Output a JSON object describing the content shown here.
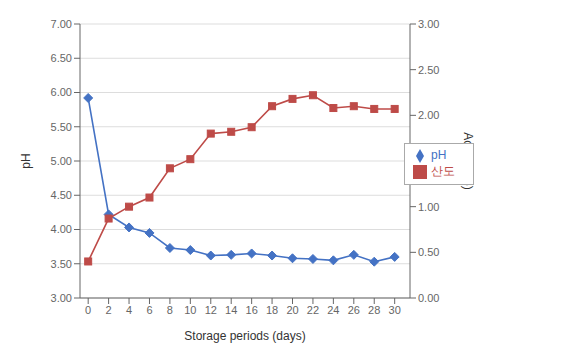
{
  "chart_data": {
    "type": "line",
    "xlabel": "Storage periods (days)",
    "ylabel": "pH",
    "y2label": "Acidity (%)",
    "x": [
      0,
      2,
      4,
      6,
      8,
      10,
      12,
      14,
      16,
      18,
      20,
      22,
      24,
      26,
      28,
      30
    ],
    "series": [
      {
        "name": "pH",
        "color": "#4472C4",
        "marker": "diamond",
        "line_style": "solid",
        "values": [
          5.92,
          4.22,
          4.03,
          3.95,
          3.73,
          3.7,
          3.62,
          3.63,
          3.65,
          3.62,
          3.58,
          3.57,
          3.55,
          3.63,
          3.53,
          3.6
        ]
      },
      {
        "name": "산도",
        "color": "#BE4B48",
        "marker": "square",
        "line_style": "solid",
        "axis": "y2",
        "values": [
          0.4,
          0.87,
          1.0,
          1.1,
          1.42,
          1.52,
          1.8,
          1.82,
          1.87,
          2.1,
          2.18,
          2.22,
          2.08,
          2.1,
          2.07,
          2.07
        ]
      }
    ],
    "xlim": [
      -0.8,
      31.5
    ],
    "xticks": [
      0,
      2,
      4,
      6,
      8,
      10,
      12,
      14,
      16,
      18,
      20,
      22,
      24,
      26,
      28,
      30
    ],
    "ylim": [
      3.0,
      7.0
    ],
    "yticks": [
      {
        "value": 3.0,
        "label": "3.00"
      },
      {
        "value": 3.5,
        "label": "3.50"
      },
      {
        "value": 4.0,
        "label": "4.00"
      },
      {
        "value": 4.5,
        "label": "4.50"
      },
      {
        "value": 5.0,
        "label": "5.00"
      },
      {
        "value": 5.5,
        "label": "5.50"
      },
      {
        "value": 6.0,
        "label": "6.00"
      },
      {
        "value": 6.5,
        "label": "6.50"
      },
      {
        "value": 7.0,
        "label": "7.00"
      }
    ],
    "y2lim": [
      0.0,
      3.0
    ],
    "y2ticks": [
      {
        "value": 0.0,
        "label": "0.00"
      },
      {
        "value": 0.5,
        "label": "0.50"
      },
      {
        "value": 1.0,
        "label": "1.00"
      },
      {
        "value": 1.5,
        "label": "1.50"
      },
      {
        "value": 2.0,
        "label": "2.00"
      },
      {
        "value": 2.5,
        "label": "2.50"
      },
      {
        "value": 3.0,
        "label": "3.00"
      }
    ],
    "grid": true,
    "legend": "right"
  }
}
